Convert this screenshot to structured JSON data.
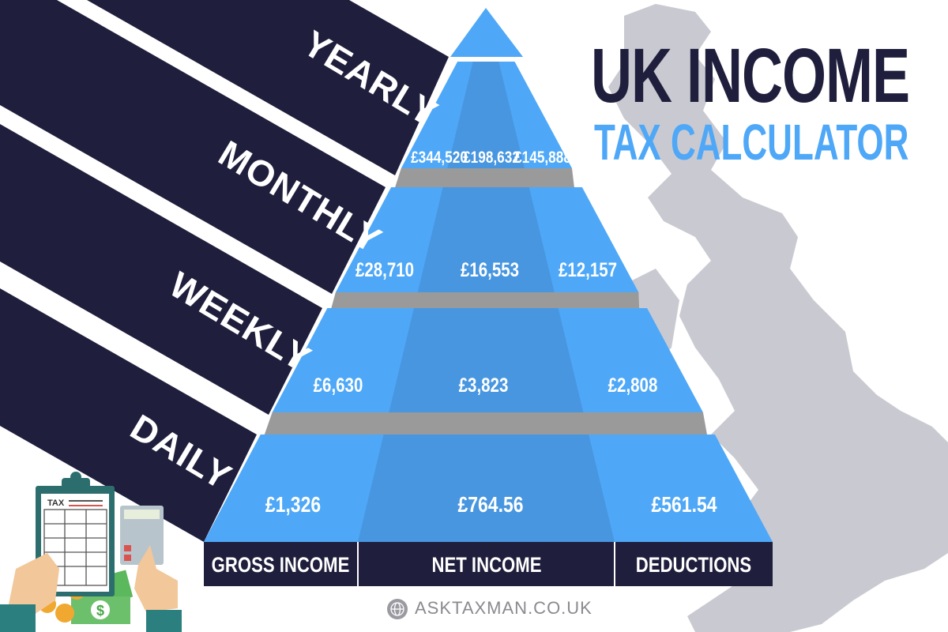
{
  "title": {
    "line1": "UK INCOME",
    "line2": "TAX CALCULATOR"
  },
  "periods": [
    "YEARLY",
    "MONTHLY",
    "WEEKLY",
    "DAILY"
  ],
  "columns": [
    "GROSS INCOME",
    "NET INCOME",
    "DEDUCTIONS"
  ],
  "rows": [
    {
      "period": "YEARLY",
      "gross": "£344,520",
      "net": "£198,632",
      "deductions": "£145,888"
    },
    {
      "period": "MONTHLY",
      "gross": "£28,710",
      "net": "£16,553",
      "deductions": "£12,157"
    },
    {
      "period": "WEEKLY",
      "gross": "£6,630",
      "net": "£3,823",
      "deductions": "£2,808"
    },
    {
      "period": "DAILY",
      "gross": "£1,326",
      "net": "£764.56",
      "deductions": "£561.54"
    }
  ],
  "illustration": {
    "clipboard_label": "TAX"
  },
  "footer": {
    "website": "ASKTAXMAN.CO.UK",
    "icon": "globe-icon"
  },
  "colors": {
    "navy": "#1f1f3d",
    "blue": "#4ea8f7",
    "blue_dark": "#4896e0",
    "gray_map": "#c9c9d1",
    "gray_band": "#9a9a9a"
  }
}
